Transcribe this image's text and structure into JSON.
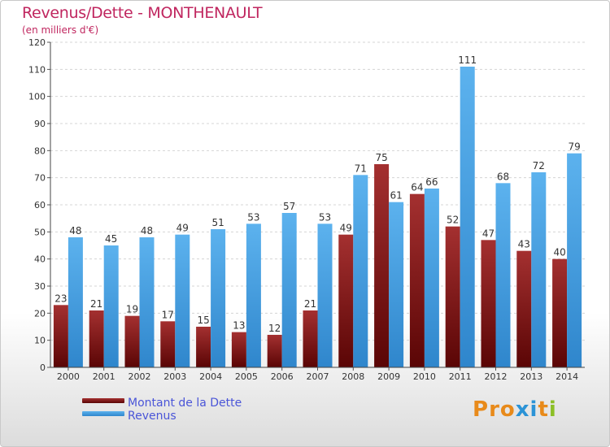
{
  "title": "Revenus/Dette - MONTHENAULT",
  "subtitle": "(en milliers d'€)",
  "legend": [
    {
      "label": "Montant de la Dette",
      "color": "#7a1010"
    },
    {
      "label": "Revenus",
      "color": "#3a9ae0"
    }
  ],
  "logo": {
    "text": "Proxiti",
    "colors": [
      "#e88a1a",
      "#e88a1a",
      "#e88a1a",
      "#2b93d6",
      "#2b93d6",
      "#e88a1a",
      "#8cbf26"
    ]
  },
  "chart_data": {
    "type": "bar",
    "categories": [
      "2000",
      "2001",
      "2002",
      "2003",
      "2004",
      "2005",
      "2006",
      "2007",
      "2008",
      "2009",
      "2010",
      "2011",
      "2012",
      "2013",
      "2014"
    ],
    "series": [
      {
        "name": "Montant de la Dette",
        "color": "#7a1010",
        "values": [
          23,
          21,
          19,
          17,
          15,
          13,
          12,
          21,
          49,
          75,
          64,
          52,
          47,
          43,
          40
        ]
      },
      {
        "name": "Revenus",
        "color": "#3a9ae0",
        "values": [
          48,
          45,
          48,
          49,
          51,
          53,
          57,
          53,
          71,
          61,
          66,
          111,
          68,
          72,
          79
        ]
      }
    ],
    "ylim": [
      0,
      120
    ],
    "yticks": [
      0,
      10,
      20,
      30,
      40,
      50,
      60,
      70,
      80,
      90,
      100,
      110,
      120
    ],
    "grid": true,
    "legend_position": "bottom-left"
  }
}
